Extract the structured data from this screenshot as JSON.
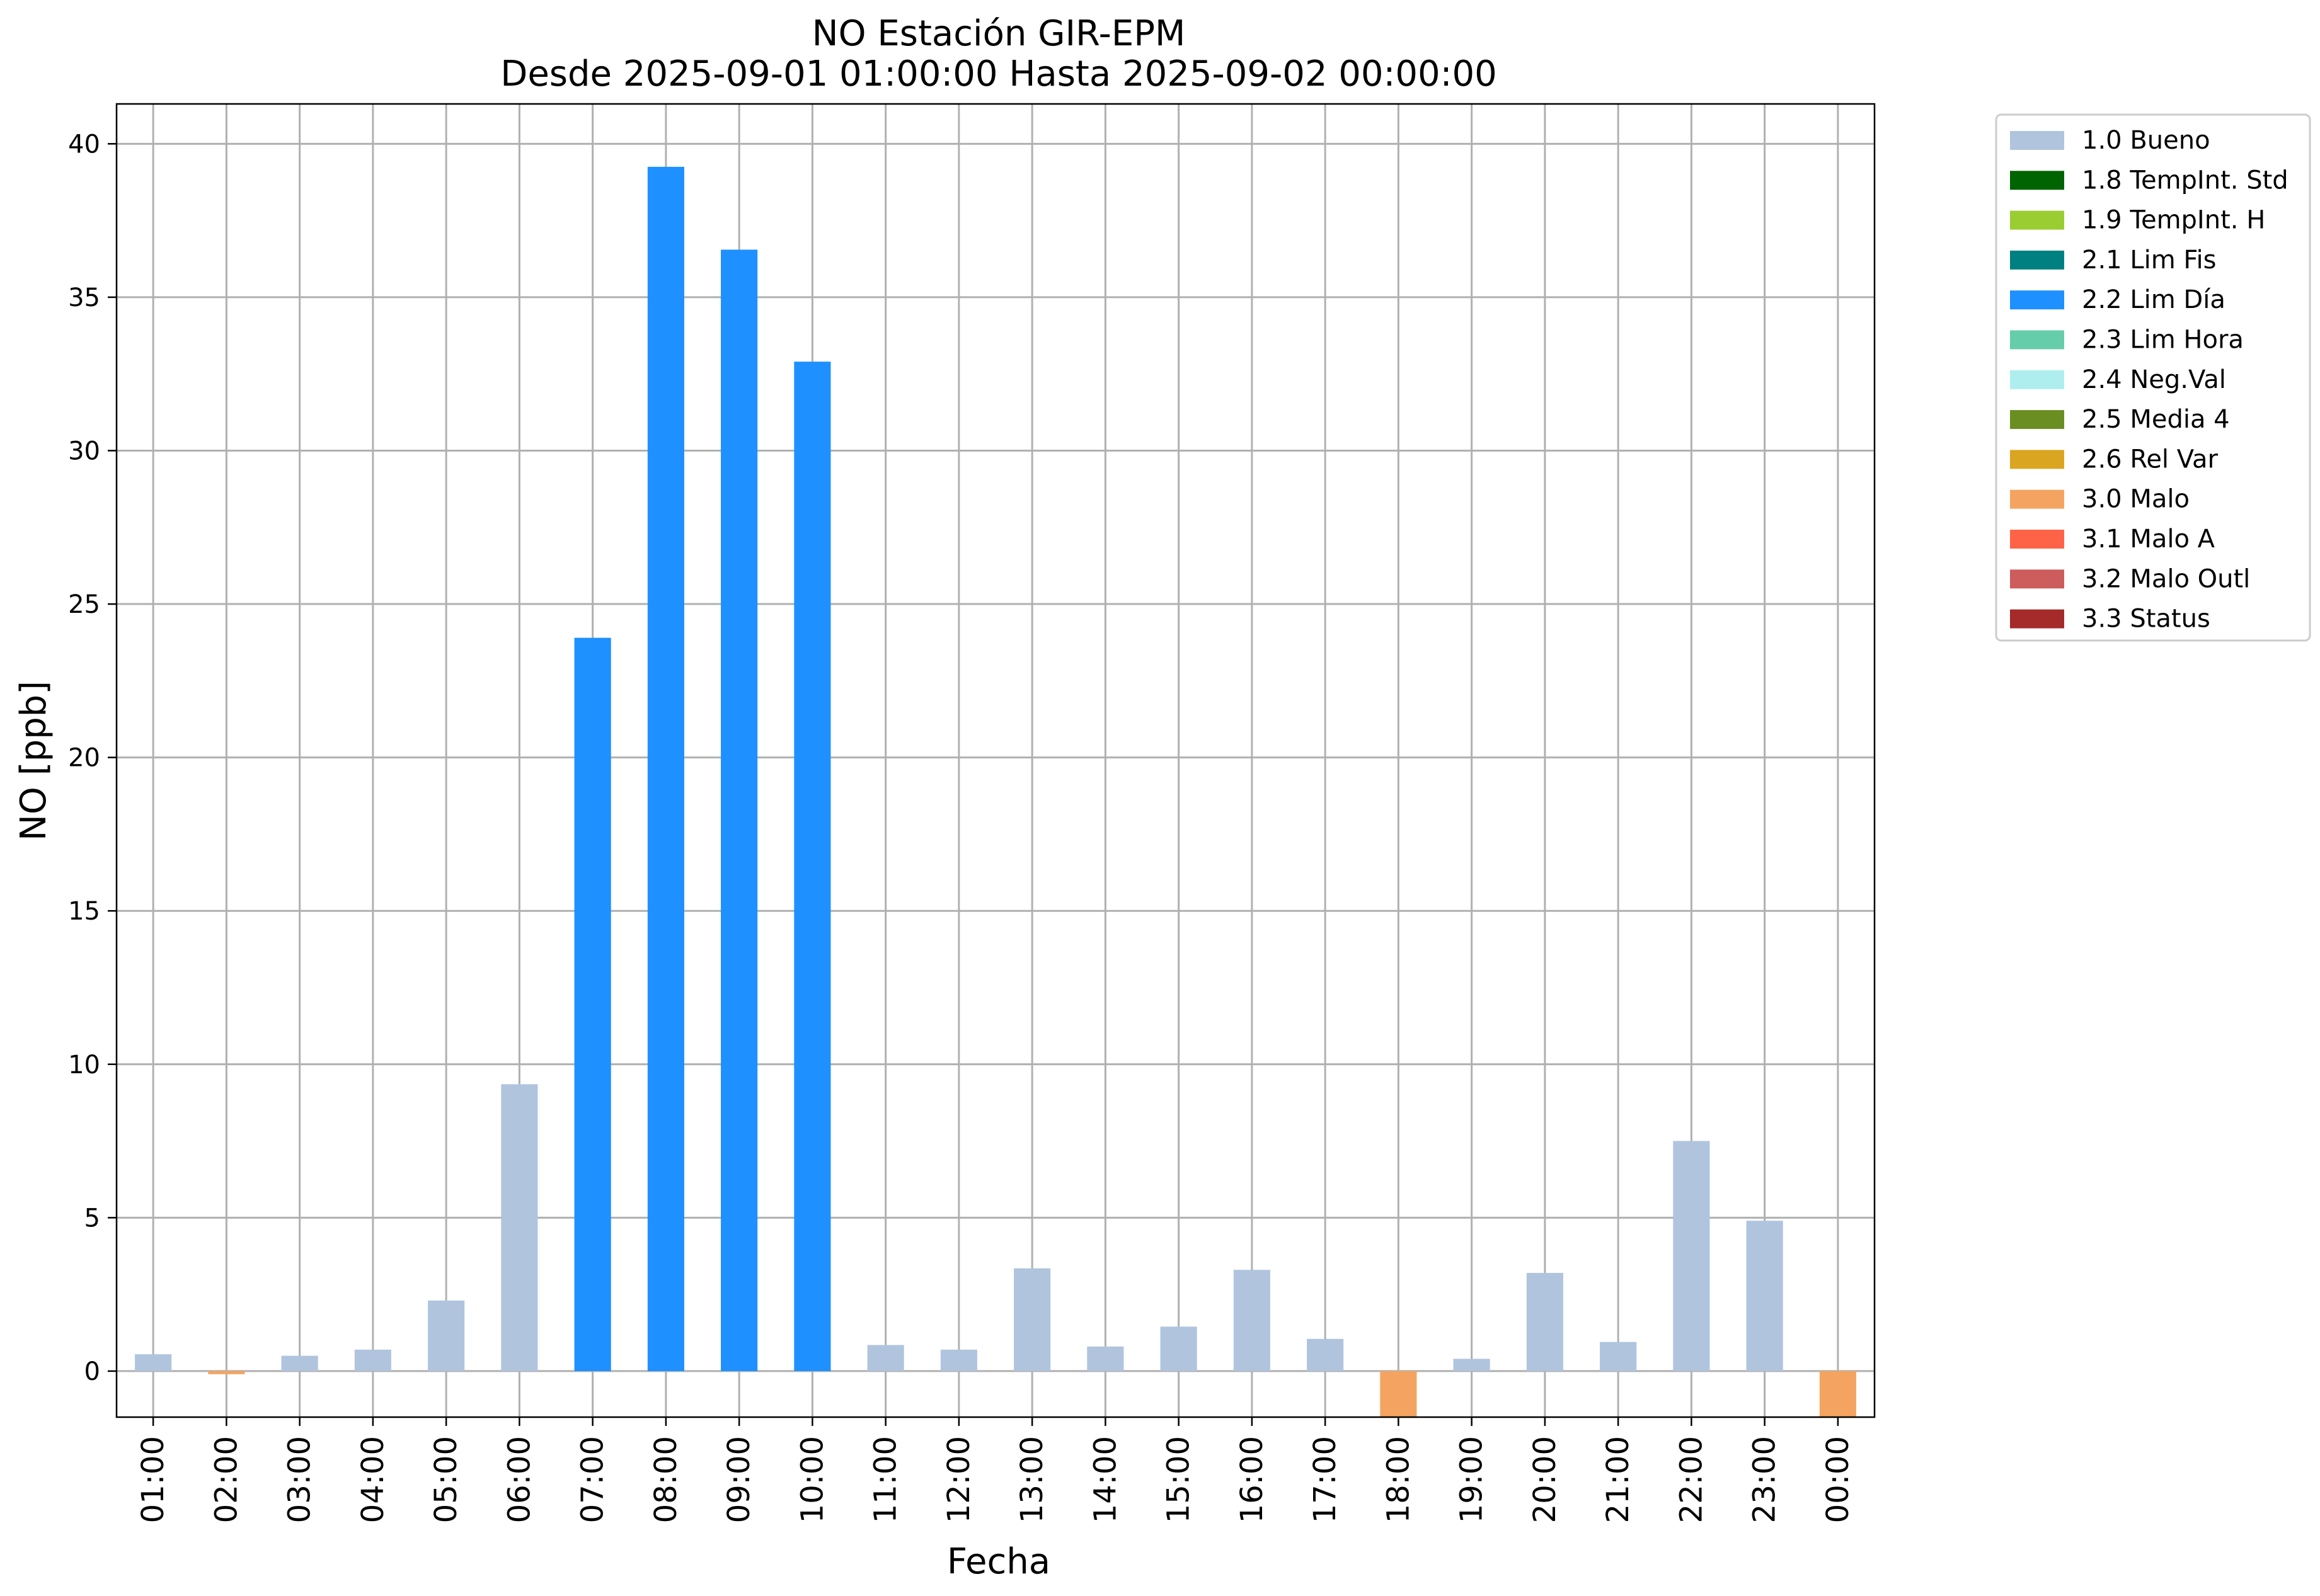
{
  "chart_data": {
    "type": "bar",
    "title": [
      "NO Estación GIR-EPM",
      "Desde 2025-09-01 01:00:00 Hasta 2025-09-02 00:00:00"
    ],
    "xlabel": "Fecha",
    "ylabel": "NO [ppb]",
    "ylim": [
      -1.5,
      41.3
    ],
    "yticks": [
      0,
      5,
      10,
      15,
      20,
      25,
      30,
      35,
      40
    ],
    "grid": true,
    "legend_position": "outside-top-right",
    "categories": [
      "01:00",
      "02:00",
      "03:00",
      "04:00",
      "05:00",
      "06:00",
      "07:00",
      "08:00",
      "09:00",
      "10:00",
      "11:00",
      "12:00",
      "13:00",
      "14:00",
      "15:00",
      "16:00",
      "17:00",
      "18:00",
      "19:00",
      "20:00",
      "21:00",
      "22:00",
      "23:00",
      "00:00"
    ],
    "values": [
      0.55,
      -0.1,
      0.5,
      0.7,
      2.3,
      9.35,
      23.9,
      39.25,
      36.55,
      32.9,
      0.85,
      0.7,
      3.35,
      0.8,
      1.45,
      3.3,
      1.05,
      -1.5,
      0.4,
      3.2,
      0.95,
      7.5,
      4.9,
      -1.5
    ],
    "flags": [
      "1.0 Bueno",
      "3.0 Malo",
      "1.0 Bueno",
      "1.0 Bueno",
      "1.0 Bueno",
      "1.0 Bueno",
      "2.2 Lim Día",
      "2.2 Lim Día",
      "2.2 Lim Día",
      "2.2 Lim Día",
      "1.0 Bueno",
      "1.0 Bueno",
      "1.0 Bueno",
      "1.0 Bueno",
      "1.0 Bueno",
      "1.0 Bueno",
      "1.0 Bueno",
      "3.0 Malo",
      "1.0 Bueno",
      "1.0 Bueno",
      "1.0 Bueno",
      "1.0 Bueno",
      "1.0 Bueno",
      "3.0 Malo"
    ],
    "legend": [
      {
        "label": "1.0 Bueno",
        "color": "#b0c4de"
      },
      {
        "label": "1.8 TempInt. Std",
        "color": "#006400"
      },
      {
        "label": "1.9 TempInt. H",
        "color": "#9acd32"
      },
      {
        "label": "2.1 Lim Fis",
        "color": "#008080"
      },
      {
        "label": "2.2 Lim Día",
        "color": "#1e90ff"
      },
      {
        "label": "2.3 Lim Hora",
        "color": "#66cdaa"
      },
      {
        "label": "2.4 Neg.Val",
        "color": "#afeeee"
      },
      {
        "label": "2.5 Media 4",
        "color": "#6b8e23"
      },
      {
        "label": "2.6 Rel Var",
        "color": "#daa520"
      },
      {
        "label": "3.0 Malo",
        "color": "#f4a460"
      },
      {
        "label": "3.1 Malo A",
        "color": "#ff6347"
      },
      {
        "label": "3.2 Malo Outl",
        "color": "#cd5c5c"
      },
      {
        "label": "3.3 Status",
        "color": "#a52a2a"
      }
    ]
  }
}
